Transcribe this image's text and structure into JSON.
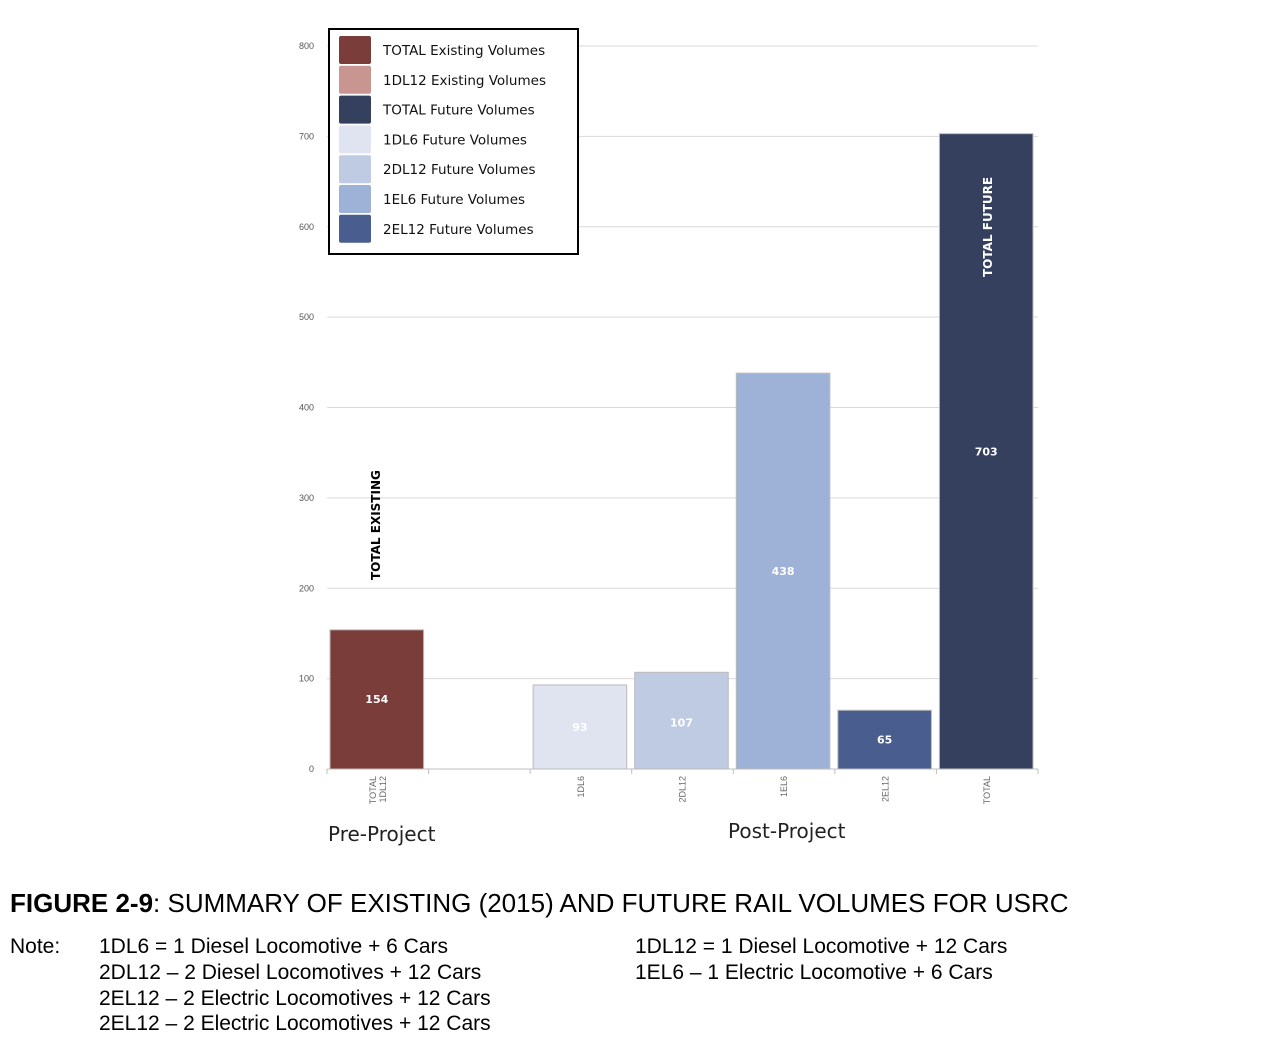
{
  "chart_data": {
    "type": "bar",
    "categories": [
      "TOTAL 1DL12",
      "",
      "1DL6",
      "2DL12",
      "1EL6",
      "2EL12",
      "TOTAL"
    ],
    "values": [
      154,
      null,
      93,
      107,
      438,
      65,
      703
    ],
    "data_labels": [
      "154",
      "",
      "93",
      "107",
      "438",
      "65",
      "703"
    ],
    "bar_colors": [
      "#7b3d3a",
      null,
      "#dfe4f0",
      "#bfcae3",
      "#9eb1d6",
      "#4a5d8f",
      "#34405e"
    ],
    "ylim": [
      0,
      800
    ],
    "yticks": [
      0,
      100,
      200,
      300,
      400,
      500,
      600,
      700,
      800
    ],
    "grid": true,
    "annotations": [
      "TOTAL EXISTING",
      "TOTAL FUTURE"
    ],
    "group_labels": [
      "Pre-Project",
      "Post-Project"
    ],
    "legend": {
      "placement": "top-left",
      "entries": [
        {
          "label": "TOTAL Existing Volumes",
          "color": "#7b3d3a"
        },
        {
          "label": "1DL12 Existing Volumes",
          "color": "#c99591"
        },
        {
          "label": "TOTAL Future Volumes",
          "color": "#34405e"
        },
        {
          "label": "1DL6 Future Volumes",
          "color": "#dfe4f0"
        },
        {
          "label": "2DL12 Future Volumes",
          "color": "#bfcae3"
        },
        {
          "label": "1EL6 Future Volumes",
          "color": "#9eb1d6"
        },
        {
          "label": "2EL12 Future Volumes",
          "color": "#4a5d8f"
        }
      ]
    }
  },
  "caption": {
    "label": "FIGURE 2-9",
    "text": ": SUMMARY OF EXISTING (2015) AND FUTURE RAIL VOLUMES FOR USRC"
  },
  "notes": {
    "heading": "Note:",
    "items": [
      "1DL6 = 1 Diesel Locomotive + 6 Cars",
      "1DL12 = 1 Diesel Locomotive + 12 Cars",
      "2DL12 – 2 Diesel Locomotives + 12 Cars",
      "1EL6 – 1 Electric Locomotive + 6 Cars",
      "2EL12 – 2 Electric Locomotives + 12 Cars",
      "2EL12 – 2 Electric Locomotives + 12 Cars"
    ]
  }
}
